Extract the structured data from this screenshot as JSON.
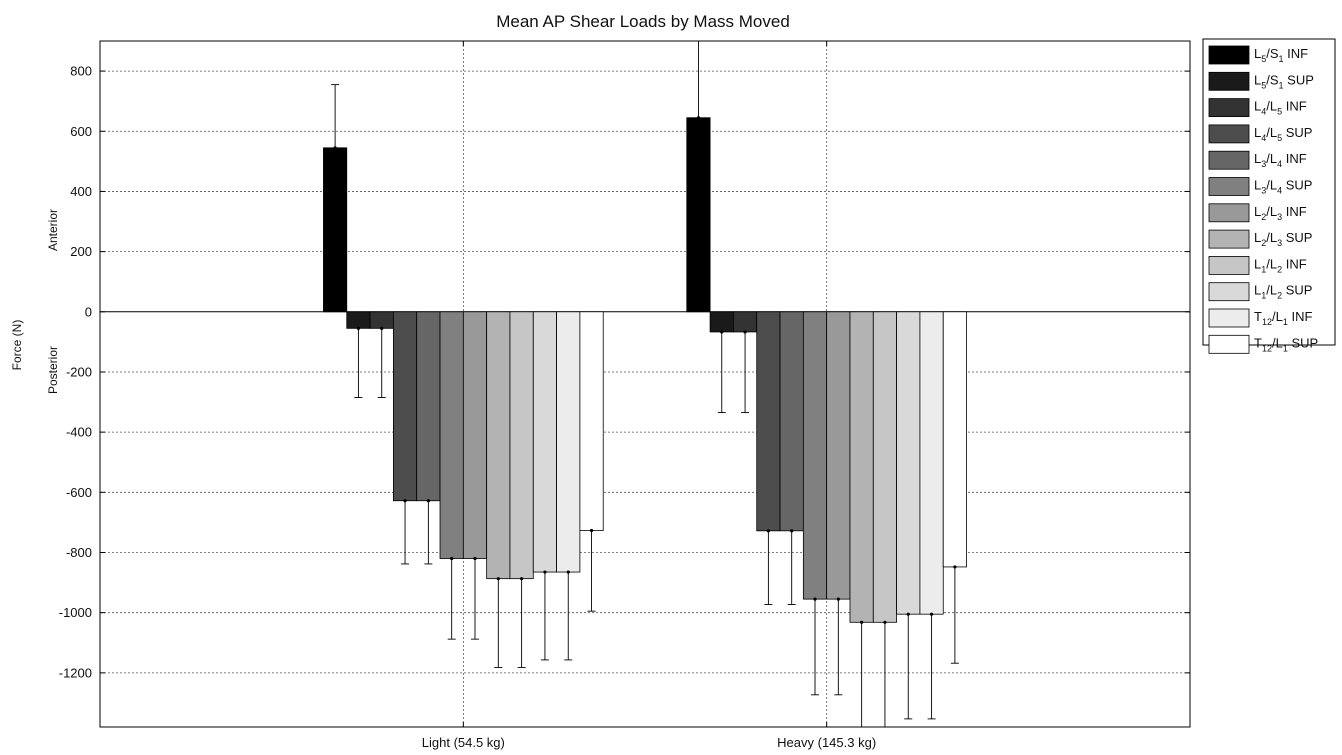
{
  "chart_data": {
    "type": "bar",
    "title": "Mean AP Shear Loads by Mass Moved",
    "ylabel": "Force (N)",
    "direction_labels": {
      "positive": "Anterior",
      "negative": "Posterior"
    },
    "ylim": [
      -1380,
      900
    ],
    "yticks": [
      800,
      600,
      400,
      200,
      0,
      -200,
      -400,
      -600,
      -800,
      -1000,
      -1200
    ],
    "grid": true,
    "legend_position": "outside-right",
    "categories": [
      "Light (54.5 kg)",
      "Heavy (145.3 kg)"
    ],
    "series": [
      {
        "name": "L5/S1 INF",
        "label": {
          "a": "L",
          "a_sub": "5",
          "b": "S",
          "b_sub": "1",
          "suffix": " INF"
        },
        "color": "#000000",
        "values": [
          545,
          645
        ],
        "errors": [
          210,
          270
        ]
      },
      {
        "name": "L5/S1 SUP",
        "label": {
          "a": "L",
          "a_sub": "5",
          "b": "S",
          "b_sub": "1",
          "suffix": " SUP"
        },
        "color": "#1a1a1a",
        "values": [
          -55,
          -67
        ],
        "errors": [
          230,
          268
        ]
      },
      {
        "name": "L4/L5 INF",
        "label": {
          "a": "L",
          "a_sub": "4",
          "b": "L",
          "b_sub": "5",
          "suffix": " INF"
        },
        "color": "#333333",
        "values": [
          -55,
          -67
        ],
        "errors": [
          230,
          268
        ]
      },
      {
        "name": "L4/L5 SUP",
        "label": {
          "a": "L",
          "a_sub": "4",
          "b": "L",
          "b_sub": "5",
          "suffix": " SUP"
        },
        "color": "#4d4d4d",
        "values": [
          -628,
          -728
        ],
        "errors": [
          210,
          245
        ]
      },
      {
        "name": "L3/L4 INF",
        "label": {
          "a": "L",
          "a_sub": "3",
          "b": "L",
          "b_sub": "4",
          "suffix": " INF"
        },
        "color": "#666666",
        "values": [
          -628,
          -728
        ],
        "errors": [
          210,
          245
        ]
      },
      {
        "name": "L3/L4 SUP",
        "label": {
          "a": "L",
          "a_sub": "3",
          "b": "L",
          "b_sub": "4",
          "suffix": " SUP"
        },
        "color": "#808080",
        "values": [
          -820,
          -955
        ],
        "errors": [
          268,
          318
        ]
      },
      {
        "name": "L2/L3 INF",
        "label": {
          "a": "L",
          "a_sub": "2",
          "b": "L",
          "b_sub": "3",
          "suffix": " INF"
        },
        "color": "#999999",
        "values": [
          -820,
          -955
        ],
        "errors": [
          268,
          318
        ]
      },
      {
        "name": "L2/L3 SUP",
        "label": {
          "a": "L",
          "a_sub": "2",
          "b": "L",
          "b_sub": "3",
          "suffix": " SUP"
        },
        "color": "#b3b3b3",
        "values": [
          -887,
          -1032
        ],
        "errors": [
          295,
          350
        ]
      },
      {
        "name": "L1/L2 INF",
        "label": {
          "a": "L",
          "a_sub": "1",
          "b": "L",
          "b_sub": "2",
          "suffix": " INF"
        },
        "color": "#c6c6c6",
        "values": [
          -887,
          -1032
        ],
        "errors": [
          295,
          350
        ]
      },
      {
        "name": "L1/L2 SUP",
        "label": {
          "a": "L",
          "a_sub": "1",
          "b": "L",
          "b_sub": "2",
          "suffix": " SUP"
        },
        "color": "#d9d9d9",
        "values": [
          -865,
          -1005
        ],
        "errors": [
          292,
          348
        ]
      },
      {
        "name": "T12/L1 INF",
        "label": {
          "a": "T",
          "a_sub": "12",
          "b": "L",
          "b_sub": "1",
          "suffix": " INF"
        },
        "color": "#ececec",
        "values": [
          -865,
          -1005
        ],
        "errors": [
          292,
          348
        ]
      },
      {
        "name": "T12/L1 SUP",
        "label": {
          "a": "T",
          "a_sub": "12",
          "b": "L",
          "b_sub": "1",
          "suffix": " SUP"
        },
        "color": "#ffffff",
        "values": [
          -727,
          -848
        ],
        "errors": [
          268,
          320
        ]
      }
    ]
  }
}
